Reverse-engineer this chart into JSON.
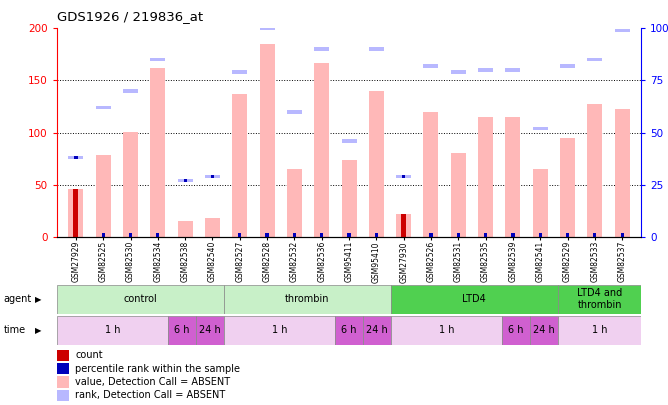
{
  "title": "GDS1926 / 219836_at",
  "samples": [
    "GSM27929",
    "GSM82525",
    "GSM82530",
    "GSM82534",
    "GSM82538",
    "GSM82540",
    "GSM82527",
    "GSM82528",
    "GSM82532",
    "GSM82536",
    "GSM95411",
    "GSM95410",
    "GSM27930",
    "GSM82526",
    "GSM82531",
    "GSM82535",
    "GSM82539",
    "GSM82541",
    "GSM82529",
    "GSM82533",
    "GSM82537"
  ],
  "pink_values": [
    46,
    79,
    101,
    162,
    15,
    18,
    137,
    185,
    65,
    167,
    74,
    140,
    22,
    120,
    80,
    115,
    115,
    65,
    95,
    127,
    123
  ],
  "blue_rank_pct": [
    38,
    62,
    70,
    85,
    27,
    29,
    79,
    100,
    60,
    90,
    46,
    90,
    29,
    82,
    79,
    80,
    80,
    52,
    82,
    85,
    99
  ],
  "red_count": [
    46,
    0,
    0,
    0,
    0,
    0,
    0,
    0,
    0,
    0,
    0,
    0,
    22,
    0,
    0,
    0,
    0,
    0,
    0,
    0,
    0
  ],
  "dark_blue_rank_pct": [
    38,
    0,
    0,
    0,
    27,
    29,
    0,
    0,
    0,
    0,
    0,
    0,
    29,
    0,
    0,
    0,
    0,
    0,
    0,
    0,
    0
  ],
  "ylim_left": [
    0,
    200
  ],
  "ylim_right": [
    0,
    100
  ],
  "yticks_left": [
    0,
    50,
    100,
    150,
    200
  ],
  "yticks_right": [
    0,
    25,
    50,
    75,
    100
  ],
  "agent_groups": [
    {
      "label": "control",
      "start": 0,
      "end": 6,
      "color": "#c8f0c8"
    },
    {
      "label": "thrombin",
      "start": 6,
      "end": 12,
      "color": "#c8f0c8"
    },
    {
      "label": "LTD4",
      "start": 12,
      "end": 18,
      "color": "#50d050"
    },
    {
      "label": "LTD4 and\nthrombin",
      "start": 18,
      "end": 21,
      "color": "#50d050"
    }
  ],
  "time_groups": [
    {
      "label": "1 h",
      "start": 0,
      "end": 4,
      "color": "#f0d0f0"
    },
    {
      "label": "6 h",
      "start": 4,
      "end": 5,
      "color": "#d060d0"
    },
    {
      "label": "24 h",
      "start": 5,
      "end": 6,
      "color": "#d060d0"
    },
    {
      "label": "1 h",
      "start": 6,
      "end": 10,
      "color": "#f0d0f0"
    },
    {
      "label": "6 h",
      "start": 10,
      "end": 11,
      "color": "#d060d0"
    },
    {
      "label": "24 h",
      "start": 11,
      "end": 12,
      "color": "#d060d0"
    },
    {
      "label": "1 h",
      "start": 12,
      "end": 16,
      "color": "#f0d0f0"
    },
    {
      "label": "6 h",
      "start": 16,
      "end": 17,
      "color": "#d060d0"
    },
    {
      "label": "24 h",
      "start": 17,
      "end": 18,
      "color": "#d060d0"
    },
    {
      "label": "1 h",
      "start": 18,
      "end": 21,
      "color": "#f0d0f0"
    }
  ],
  "pink_color": "#ffb8b8",
  "blue_rank_color": "#b8b8ff",
  "red_color": "#cc0000",
  "dark_blue_color": "#0000bb",
  "legend_items": [
    {
      "color": "#cc0000",
      "label": "count"
    },
    {
      "color": "#0000bb",
      "label": "percentile rank within the sample"
    },
    {
      "color": "#ffb8b8",
      "label": "value, Detection Call = ABSENT"
    },
    {
      "color": "#b8b8ff",
      "label": "rank, Detection Call = ABSENT"
    }
  ]
}
